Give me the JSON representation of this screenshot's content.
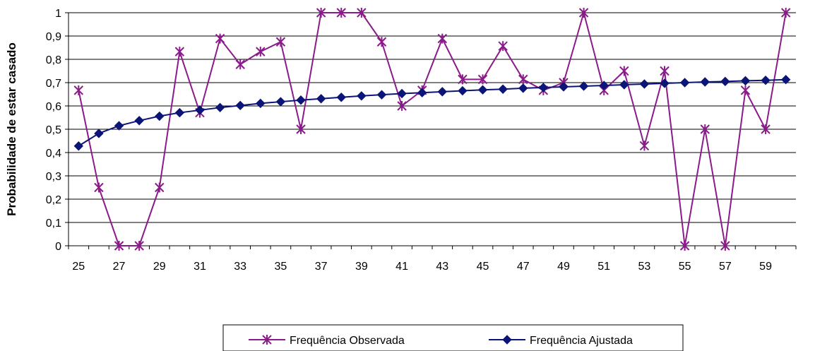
{
  "chart_data": {
    "type": "line",
    "title": "",
    "xlabel": "",
    "ylabel": "Probabilidade de estar casado",
    "x": [
      25,
      26,
      27,
      28,
      29,
      30,
      31,
      32,
      33,
      34,
      35,
      36,
      37,
      38,
      39,
      40,
      41,
      42,
      43,
      44,
      45,
      46,
      47,
      48,
      49,
      50,
      51,
      52,
      53,
      54,
      55,
      56,
      57,
      58,
      59,
      60
    ],
    "x_tick_labels": [
      "25",
      "27",
      "29",
      "31",
      "33",
      "35",
      "37",
      "39",
      "41",
      "43",
      "45",
      "47",
      "49",
      "51",
      "53",
      "55",
      "57",
      "59"
    ],
    "y_tick_labels": [
      "0",
      "0,1",
      "0,2",
      "0,3",
      "0,4",
      "0,5",
      "0,6",
      "0,7",
      "0,8",
      "0,9",
      "1"
    ],
    "ylim": [
      0,
      1
    ],
    "grid": "horizontal",
    "legend_position": "bottom",
    "series": [
      {
        "name": "Frequência Observada",
        "color": "#8B1A8B",
        "marker": "star",
        "values": [
          0.667,
          0.25,
          0,
          0,
          0.25,
          0.833,
          0.571,
          0.889,
          0.778,
          0.833,
          0.875,
          0.5,
          1,
          1,
          1,
          0.875,
          0.6,
          0.667,
          0.889,
          0.714,
          0.714,
          0.857,
          0.714,
          0.667,
          0.7,
          1,
          0.667,
          0.75,
          0.429,
          0.75,
          0,
          0.5,
          0,
          0.667,
          0.5,
          1
        ]
      },
      {
        "name": "Frequência Ajustada",
        "color": "#0B1577",
        "marker": "diamond",
        "values": [
          0.428,
          0.482,
          0.515,
          0.537,
          0.556,
          0.571,
          0.582,
          0.593,
          0.602,
          0.611,
          0.618,
          0.625,
          0.631,
          0.637,
          0.643,
          0.648,
          0.653,
          0.657,
          0.661,
          0.665,
          0.669,
          0.672,
          0.676,
          0.679,
          0.682,
          0.685,
          0.688,
          0.691,
          0.694,
          0.697,
          0.7,
          0.703,
          0.705,
          0.708,
          0.71,
          0.713
        ]
      }
    ]
  }
}
